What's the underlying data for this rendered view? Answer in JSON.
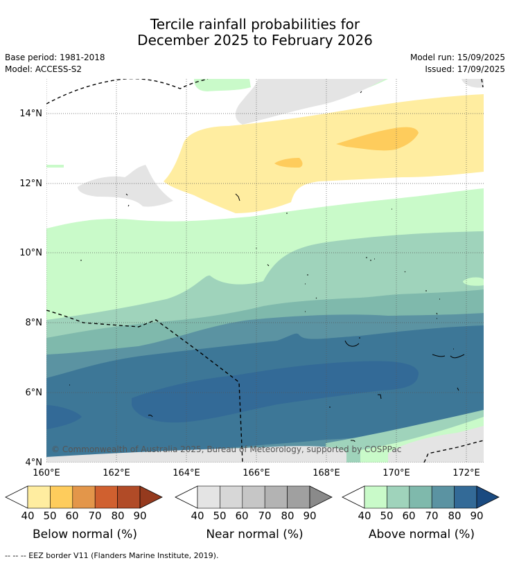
{
  "title": {
    "line1": "Tercile rainfall probabilities for",
    "line2": "December 2025 to February 2026"
  },
  "meta": {
    "base_period": "Base period: 1981-2018",
    "model": "Model: ACCESS-S2",
    "model_run": "Model run: 15/09/2025",
    "issued": "Issued: 17/09/2025"
  },
  "map": {
    "copyright": "© Commonwealth of Australia 2025, Bureau of Meteorology, supported by COSPPac",
    "lat_ticks": [
      "14°N",
      "12°N",
      "10°N",
      "8°N",
      "6°N",
      "4°N"
    ],
    "lon_ticks": [
      "160°E",
      "162°E",
      "164°E",
      "166°E",
      "168°E",
      "170°E",
      "172°E"
    ]
  },
  "colorbars": [
    {
      "label": "Below normal (%)",
      "ticks": [
        "40",
        "50",
        "60",
        "70",
        "80",
        "90"
      ],
      "colors": [
        "#ffeda0",
        "#fecc5c",
        "#e3964a",
        "#d0602f",
        "#b14b27",
        "#953a1e"
      ]
    },
    {
      "label": "Near normal (%)",
      "ticks": [
        "40",
        "50",
        "60",
        "70",
        "80",
        "90"
      ],
      "colors": [
        "#e4e4e4",
        "#d7d7d7",
        "#c6c6c6",
        "#b3b3b3",
        "#a0a0a0",
        "#8a8a8a"
      ]
    },
    {
      "label": "Above normal (%)",
      "ticks": [
        "40",
        "50",
        "60",
        "70",
        "80",
        "90"
      ],
      "colors": [
        "#c9fac9",
        "#9fd3bb",
        "#7fb9ac",
        "#5b93a2",
        "#336a97",
        "#1a4a80"
      ]
    }
  ],
  "footnote": "--  --  -- EEZ border V11 (Flanders Marine Institute, 2019)."
}
